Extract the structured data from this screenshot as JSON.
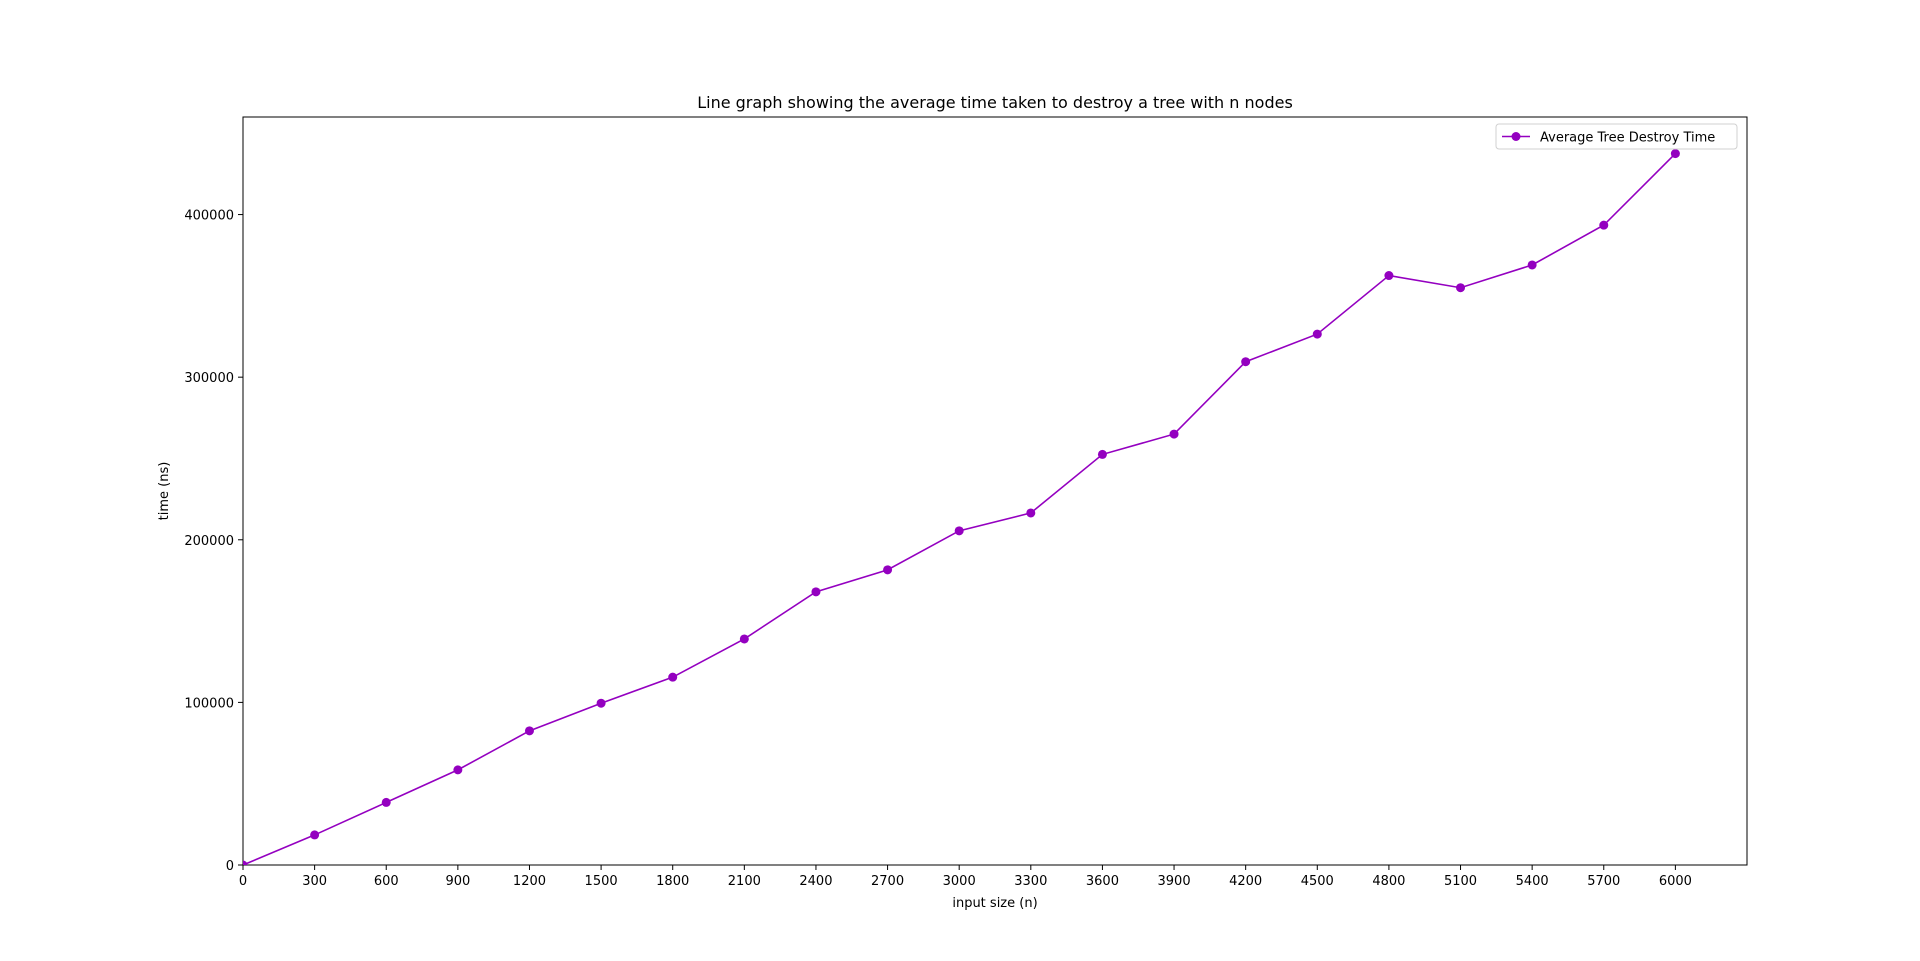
{
  "chart_data": {
    "type": "line",
    "title": "Line graph showing the average time taken to destroy a tree with n nodes",
    "xlabel": "input size (n)",
    "ylabel": "time (ns)",
    "x_ticks": [
      0,
      300,
      600,
      900,
      1200,
      1500,
      1800,
      2100,
      2400,
      2700,
      3000,
      3300,
      3600,
      3900,
      4200,
      4500,
      4800,
      5100,
      5400,
      5700,
      6000
    ],
    "y_ticks": [
      0,
      100000,
      200000,
      300000,
      400000
    ],
    "xlim": [
      0,
      6300
    ],
    "ylim": [
      0,
      460000
    ],
    "grid": false,
    "legend_position": "top-right",
    "series": [
      {
        "name": "Average Tree Destroy Time",
        "color": "#9400c0",
        "marker": "circle",
        "x": [
          0,
          300,
          600,
          900,
          1200,
          1500,
          1800,
          2100,
          2400,
          2700,
          3000,
          3300,
          3600,
          3900,
          4200,
          4500,
          4800,
          5100,
          5400,
          5700,
          6000
        ],
        "y": [
          0,
          18500,
          38500,
          58500,
          82500,
          99500,
          115500,
          139000,
          168000,
          181500,
          205500,
          216500,
          252500,
          265000,
          309500,
          326500,
          362500,
          355000,
          369000,
          393500,
          437500
        ]
      }
    ]
  }
}
